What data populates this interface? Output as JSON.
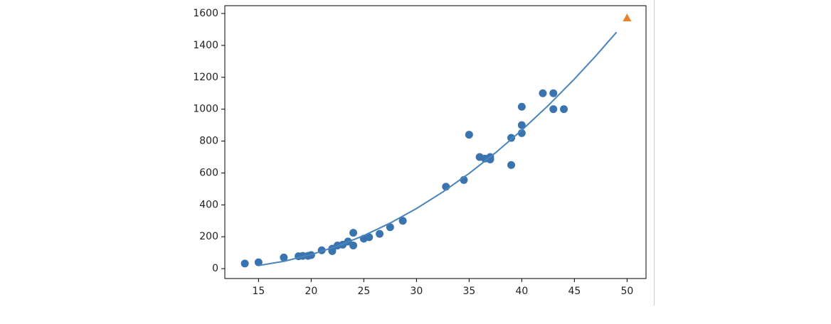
{
  "chart_data": {
    "type": "scatter",
    "xlim": [
      11.8,
      51.8
    ],
    "ylim": [
      -62,
      1649
    ],
    "xticks": [
      15,
      20,
      25,
      30,
      35,
      40,
      45,
      50
    ],
    "yticks": [
      0,
      200,
      400,
      600,
      800,
      1000,
      1200,
      1400,
      1600
    ],
    "series": [
      {
        "kind": "scatter",
        "marker": "circle",
        "color": "#3a74b0",
        "x": [
          13.7,
          15,
          17.4,
          18.8,
          19.2,
          19.7,
          20,
          21,
          22,
          22,
          22.5,
          23,
          23.5,
          24,
          24,
          25,
          25.5,
          26.5,
          27.5,
          28.7,
          32.8,
          34.5,
          35,
          36,
          36.5,
          37,
          37,
          39,
          39,
          40,
          40,
          40,
          42,
          43,
          43,
          44
        ],
        "values": [
          32,
          40,
          70,
          78,
          80,
          80,
          85,
          115,
          110,
          125,
          145,
          150,
          170,
          225,
          145,
          188,
          197,
          218,
          260,
          300,
          514,
          556,
          840,
          700,
          690,
          700,
          685,
          820,
          650,
          850,
          900,
          1015,
          1100,
          1100,
          1000,
          1000
        ]
      },
      {
        "kind": "line",
        "color": "#4a84bc",
        "x": [
          15,
          17.5,
          20,
          22.5,
          25,
          27.5,
          30,
          32.5,
          35,
          37.5,
          40,
          42.5,
          45,
          47,
          49
        ],
        "values": [
          19.3,
          47.3,
          88,
          141.3,
          207.3,
          285.8,
          377,
          480.8,
          597.3,
          726.3,
          868,
          1022.3,
          1189.3,
          1331.9,
          1482.7
        ]
      },
      {
        "kind": "scatter",
        "marker": "triangle",
        "color": "#e8822c",
        "x": [
          50
        ],
        "values": [
          1573
        ]
      }
    ]
  }
}
